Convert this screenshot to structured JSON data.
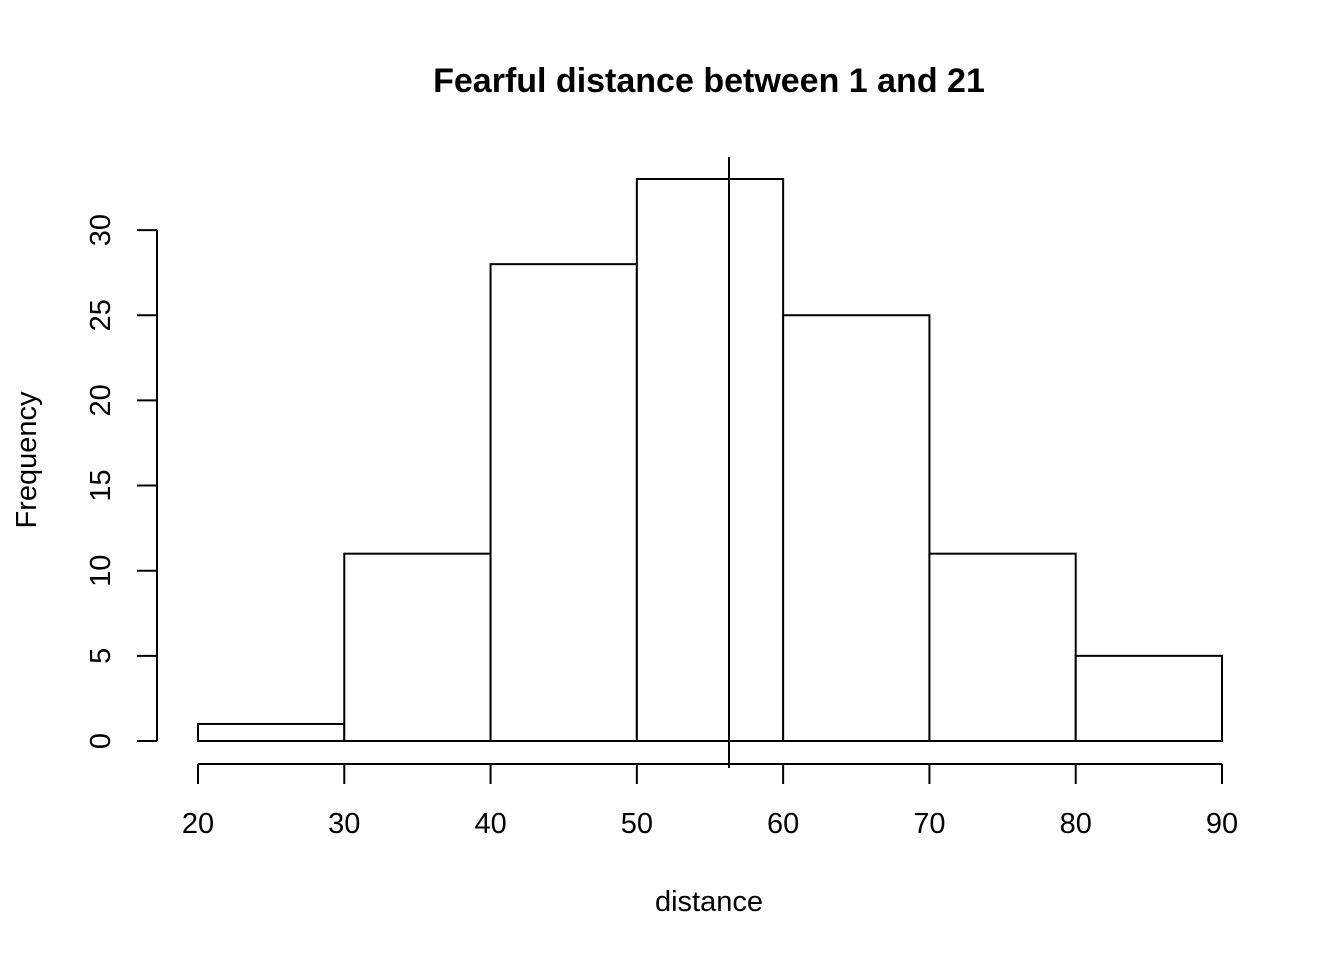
{
  "chart_data": {
    "type": "bar",
    "title": "Fearful distance between 1 and 21",
    "xlabel": "distance",
    "ylabel": "Frequency",
    "bins": [
      {
        "from": 20,
        "to": 30,
        "count": 1
      },
      {
        "from": 30,
        "to": 40,
        "count": 11
      },
      {
        "from": 40,
        "to": 50,
        "count": 28
      },
      {
        "from": 50,
        "to": 60,
        "count": 33
      },
      {
        "from": 60,
        "to": 70,
        "count": 25
      },
      {
        "from": 70,
        "to": 80,
        "count": 11
      },
      {
        "from": 80,
        "to": 90,
        "count": 5
      }
    ],
    "xlim": [
      20,
      90
    ],
    "ylim": [
      0,
      33
    ],
    "x_ticks": [
      "20",
      "30",
      "40",
      "50",
      "60",
      "70",
      "80",
      "90"
    ],
    "y_ticks": [
      "0",
      "5",
      "10",
      "15",
      "20",
      "25",
      "30"
    ],
    "vline_x": 56.3,
    "grid": false,
    "colors": {
      "stroke": "#000000",
      "fill": "#ffffff"
    }
  }
}
